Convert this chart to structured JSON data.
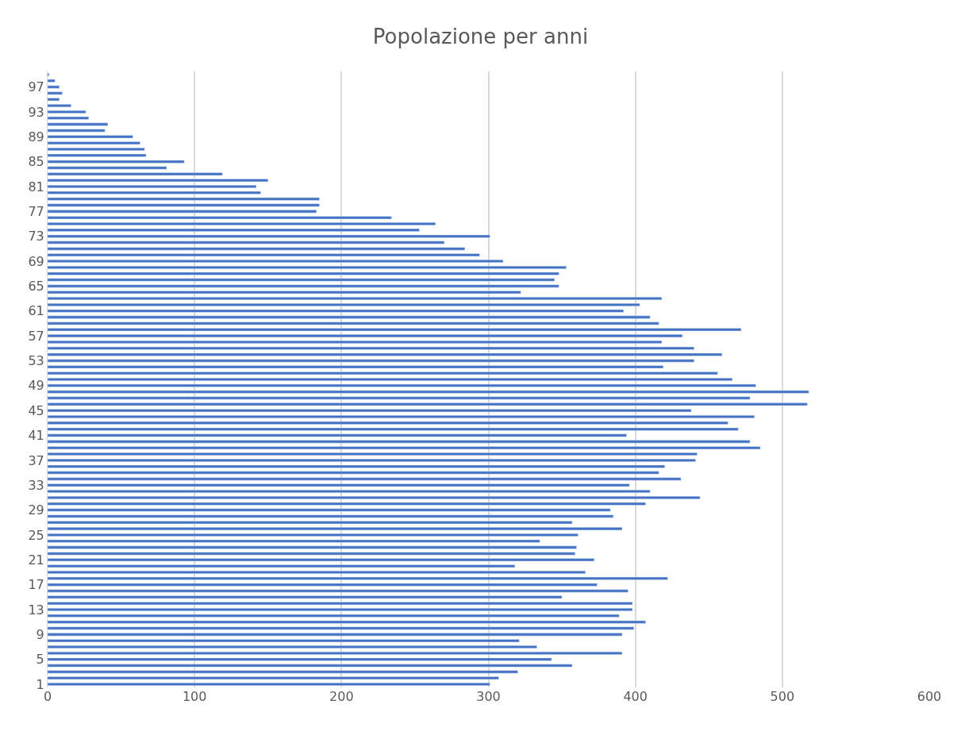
{
  "chart_data": {
    "type": "bar",
    "orientation": "horizontal",
    "title": "Popolazione per anni",
    "categories": [
      null,
      null,
      "97",
      null,
      null,
      null,
      "93",
      null,
      null,
      null,
      "89",
      null,
      null,
      null,
      "85",
      null,
      null,
      null,
      "81",
      null,
      null,
      null,
      "77",
      null,
      null,
      null,
      "73",
      null,
      null,
      null,
      "69",
      null,
      null,
      null,
      "65",
      null,
      null,
      null,
      "61",
      null,
      null,
      null,
      "57",
      null,
      null,
      null,
      "53",
      null,
      null,
      null,
      "49",
      null,
      null,
      null,
      "45",
      null,
      null,
      null,
      "41",
      null,
      null,
      null,
      "37",
      null,
      null,
      null,
      "33",
      null,
      null,
      null,
      "29",
      null,
      null,
      null,
      "25",
      null,
      null,
      null,
      "21",
      null,
      null,
      null,
      "17",
      null,
      null,
      null,
      "13",
      null,
      null,
      null,
      "9",
      null,
      null,
      null,
      "5",
      null,
      null,
      null,
      "1"
    ],
    "values": [
      1,
      5,
      8,
      10,
      8,
      16,
      26,
      28,
      41,
      39,
      58,
      63,
      66,
      67,
      93,
      81,
      119,
      150,
      142,
      145,
      185,
      185,
      183,
      234,
      264,
      253,
      301,
      270,
      284,
      294,
      310,
      353,
      348,
      345,
      348,
      322,
      418,
      403,
      392,
      410,
      416,
      472,
      432,
      418,
      440,
      459,
      440,
      419,
      456,
      466,
      482,
      518,
      478,
      517,
      438,
      481,
      463,
      470,
      394,
      478,
      485,
      442,
      441,
      420,
      416,
      431,
      396,
      410,
      444,
      407,
      383,
      385,
      357,
      391,
      361,
      335,
      360,
      359,
      372,
      318,
      366,
      422,
      374,
      395,
      350,
      398,
      398,
      389,
      407,
      399,
      391,
      321,
      333,
      391,
      343,
      357,
      320,
      307,
      301
    ],
    "color": "#4472c4",
    "xlim": [
      0,
      600
    ],
    "xticks": [
      0,
      100,
      200,
      300,
      400,
      500,
      600
    ],
    "grid": "x"
  }
}
